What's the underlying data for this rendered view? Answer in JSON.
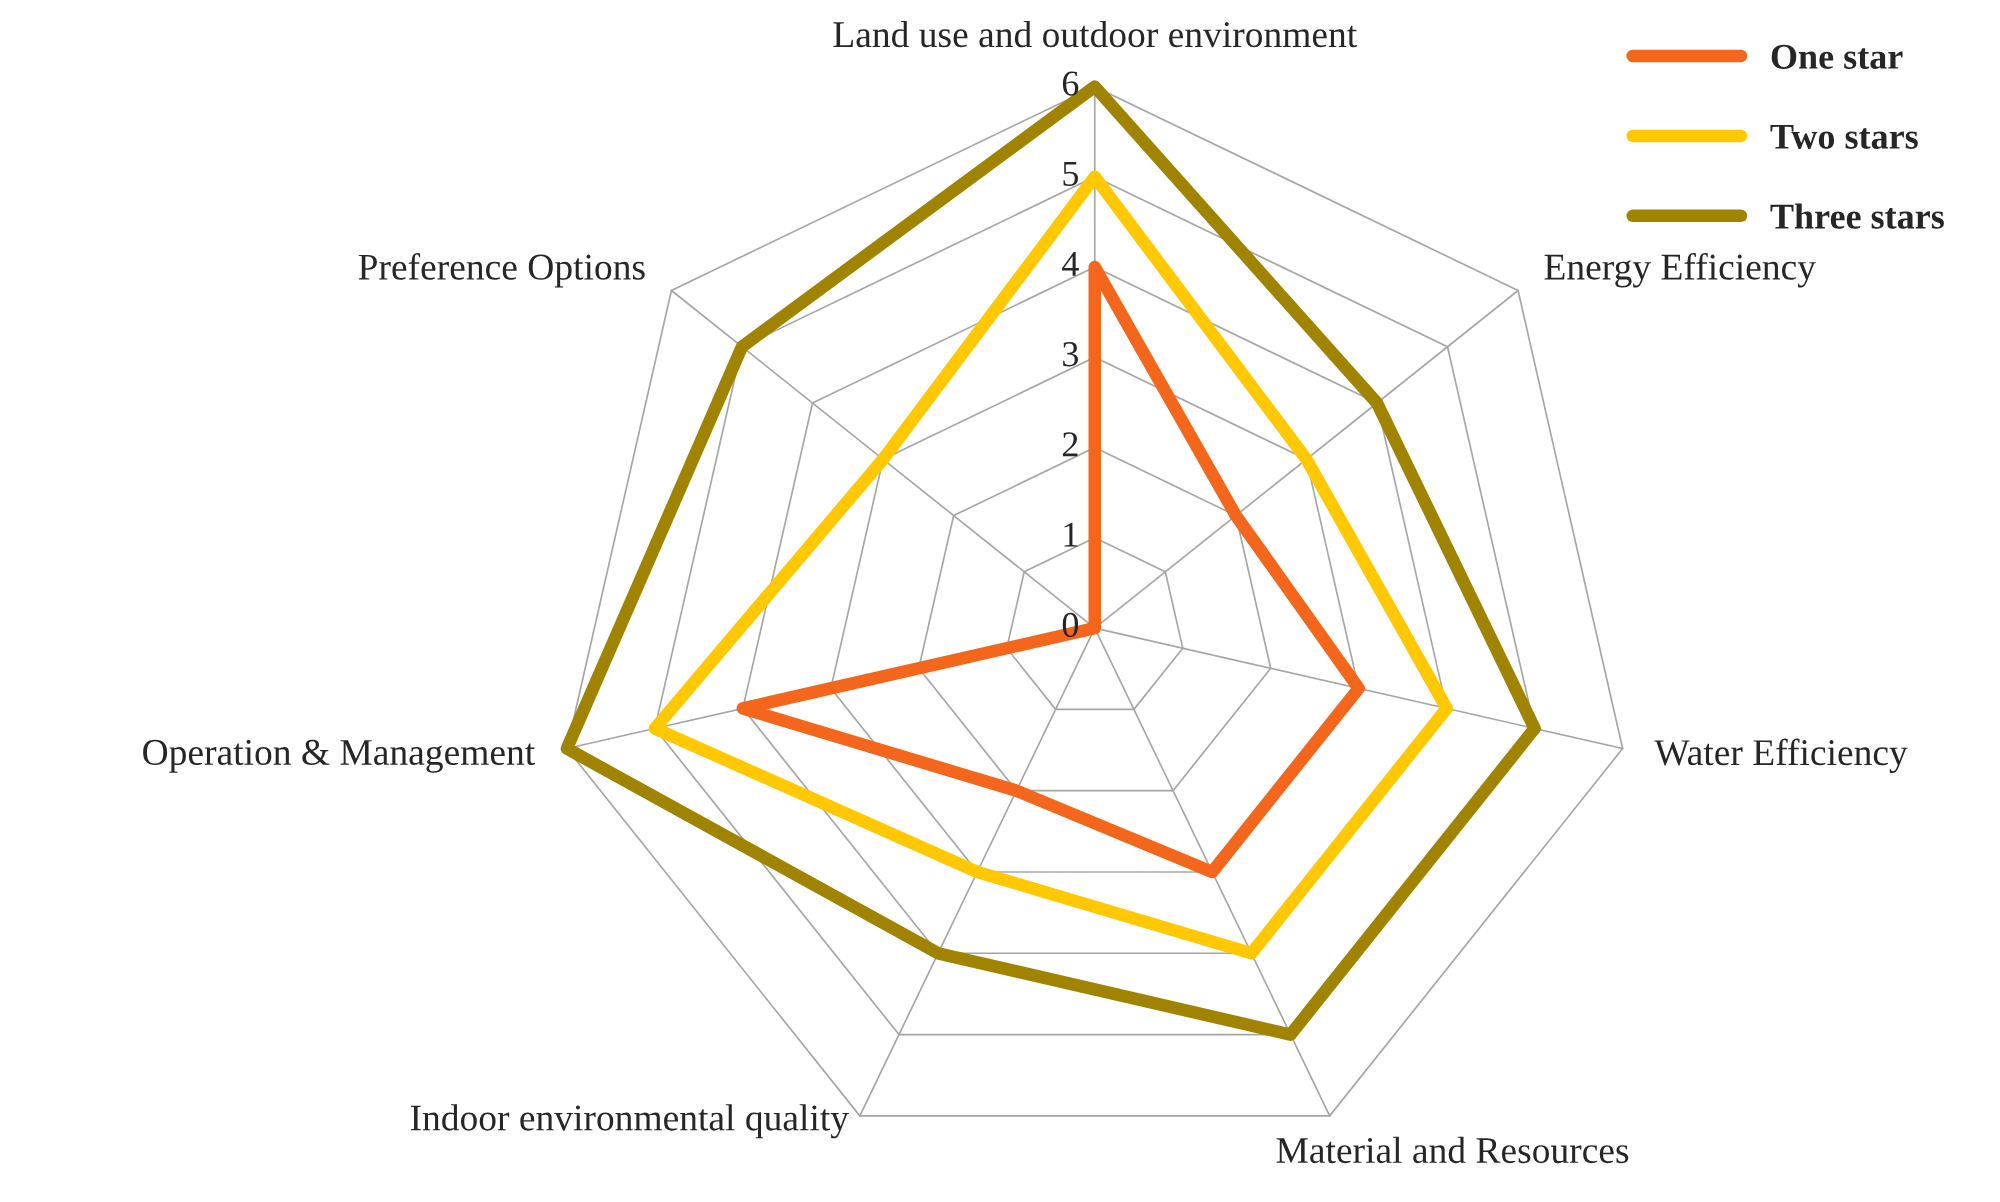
{
  "chart_data": {
    "type": "radar",
    "categories": [
      "Land use and outdoor environment",
      "Energy Efficiency",
      "Water Efficiency",
      "Material and Resources",
      "Indoor environmental quality",
      "Operation & Management",
      "Preference Options"
    ],
    "series": [
      {
        "name": "One star",
        "color": "#f4661b",
        "values": [
          4,
          2,
          3,
          3,
          2,
          4,
          0
        ]
      },
      {
        "name": "Two stars",
        "color": "#ffc800",
        "values": [
          5,
          3,
          4,
          4,
          3,
          5,
          3
        ]
      },
      {
        "name": "Three stars",
        "color": "#a08400",
        "values": [
          6,
          4,
          5,
          5,
          4,
          6,
          5
        ]
      }
    ],
    "ylim": [
      0,
      6
    ],
    "yticks": [
      0,
      1,
      2,
      3,
      4,
      5,
      6
    ],
    "grid": true,
    "legend": "top right"
  }
}
